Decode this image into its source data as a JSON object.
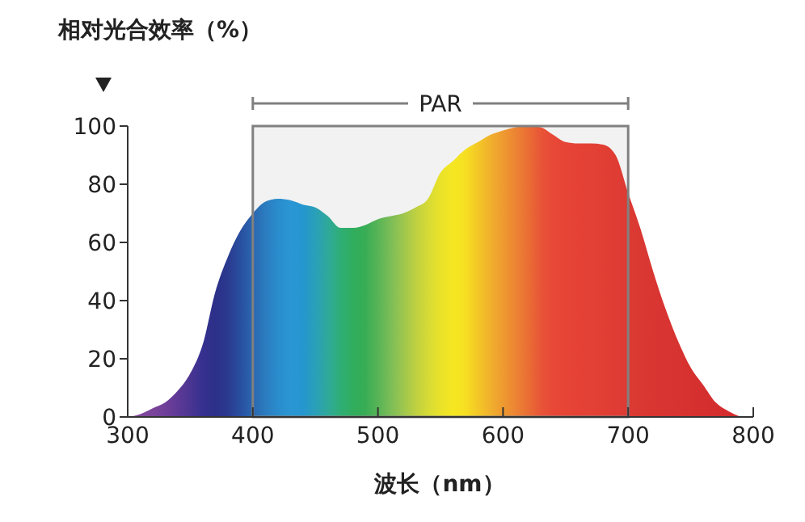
{
  "chart_data": {
    "type": "area",
    "ylabel": "相对光合效率（%）",
    "xlabel": "波长（nm）",
    "x": [
      300,
      310,
      320,
      330,
      340,
      350,
      360,
      370,
      380,
      390,
      400,
      410,
      420,
      430,
      440,
      450,
      460,
      470,
      480,
      490,
      500,
      510,
      520,
      530,
      540,
      550,
      560,
      570,
      580,
      590,
      600,
      610,
      620,
      630,
      640,
      650,
      660,
      670,
      680,
      690,
      700,
      710,
      720,
      730,
      740,
      750,
      760,
      770,
      780,
      790
    ],
    "values": [
      0,
      1,
      3,
      5,
      9,
      15,
      25,
      43,
      55,
      64,
      70,
      74,
      75,
      74.5,
      73,
      72,
      69,
      65,
      65,
      66,
      68,
      69,
      70,
      72,
      75,
      84,
      88,
      92,
      94.5,
      97,
      98.5,
      99.6,
      100,
      99.6,
      97,
      94.5,
      94,
      94,
      93.6,
      90,
      77,
      64.5,
      50,
      37,
      26,
      17,
      11,
      5,
      2,
      0
    ],
    "colors": [
      "#8a4fa0",
      "#80479c",
      "#7a449b",
      "#6f3f99",
      "#5e3996",
      "#4b3592",
      "#363090",
      "#2c3088",
      "#2a3a8f",
      "#294f9f",
      "#2a66b0",
      "#2b7cbf",
      "#2a8ccc",
      "#2a96d4",
      "#2596d0",
      "#2a9fb8",
      "#2ea99a",
      "#2fae76",
      "#30ad5e",
      "#38ad55",
      "#58b456",
      "#7bbd57",
      "#9dc64e",
      "#bdd041",
      "#d6da35",
      "#eae22a",
      "#f5e721",
      "#f6df22",
      "#f3c727",
      "#f0b02c",
      "#ee9a30",
      "#ec8434",
      "#ea6e34",
      "#e85537",
      "#e74837",
      "#e64536",
      "#e54235",
      "#e34135",
      "#e13f34",
      "#df3d34",
      "#dc3a33",
      "#da3832",
      "#d93632",
      "#d83431",
      "#d73330",
      "#d6312f",
      "#d52f2f",
      "#d42d2e",
      "#d42b2e",
      "#d42a2e"
    ],
    "xlim": [
      300,
      800
    ],
    "xticks": [
      300,
      400,
      500,
      600,
      700,
      800
    ],
    "ylim": [
      0,
      100
    ],
    "yticks": [
      0,
      20,
      40,
      60,
      80,
      100
    ],
    "bands": [
      {
        "axis": "x",
        "from": 400,
        "to": 700,
        "label": "PAR",
        "color": "#808080"
      }
    ],
    "grid": false
  }
}
